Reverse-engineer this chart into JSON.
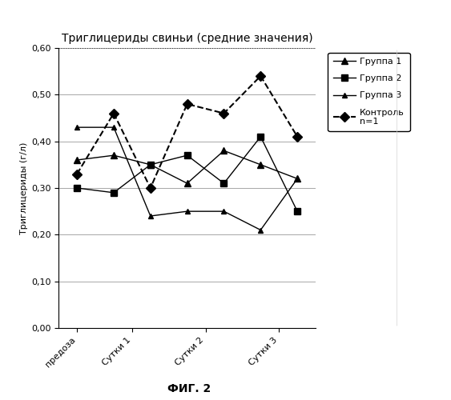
{
  "title": "Триглицериды свиньи (средние значения)",
  "ylabel": "Триглицериды (г/л)",
  "xlabel_fig": "ФИГ. 2",
  "ylim": [
    0.0,
    0.6
  ],
  "ytick_labels": [
    "0,00",
    "0,10",
    "0,20",
    "0,30",
    "0,40",
    "0,50",
    "0,60"
  ],
  "ytick_vals": [
    0.0,
    0.1,
    0.2,
    0.3,
    0.4,
    0.5,
    0.6
  ],
  "x_positions": [
    0,
    1,
    2,
    3,
    4,
    5,
    6
  ],
  "xtick_positions": [
    0,
    1.5,
    3.5,
    5.5
  ],
  "xtick_labels": [
    "предоза",
    "Сутки 1",
    "Сутки 2",
    "Сутки 3"
  ],
  "gruppe1": {
    "x": [
      0,
      1,
      2,
      3,
      4,
      5,
      6
    ],
    "y": [
      0.36,
      0.37,
      0.35,
      0.31,
      0.38,
      0.35,
      0.32
    ]
  },
  "gruppe2": {
    "x": [
      0,
      1,
      2,
      3,
      4,
      5,
      6
    ],
    "y": [
      0.3,
      0.29,
      0.35,
      0.37,
      0.31,
      0.41,
      0.25
    ]
  },
  "gruppe3": {
    "x": [
      0,
      1,
      2,
      3,
      4,
      5,
      6
    ],
    "y": [
      0.43,
      0.43,
      0.24,
      0.25,
      0.25,
      0.21,
      0.32
    ]
  },
  "kontrolь": {
    "x": [
      0,
      1,
      2,
      3,
      4,
      5,
      6
    ],
    "y": [
      0.33,
      0.46,
      0.3,
      0.48,
      0.46,
      0.54,
      0.41
    ]
  },
  "background_color": "#ffffff",
  "grid_color": "#999999"
}
